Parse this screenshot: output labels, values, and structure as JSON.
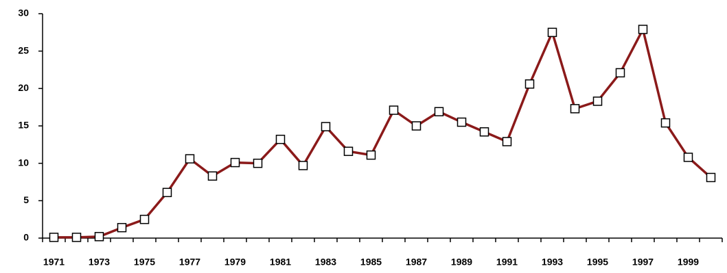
{
  "chart_data": {
    "type": "line",
    "categories": [
      "1971",
      null,
      "1973",
      null,
      "1975",
      null,
      "1977",
      null,
      "1979",
      null,
      "1981",
      null,
      "1983",
      null,
      "1985",
      null,
      "1987",
      null,
      "1989",
      null,
      "1991",
      null,
      "1993",
      null,
      "1995",
      null,
      "1997",
      null,
      "1999",
      null
    ],
    "values": [
      0.1,
      0.1,
      0.2,
      1.4,
      2.5,
      6.1,
      10.6,
      8.3,
      10.1,
      10.0,
      13.2,
      9.7,
      14.9,
      11.6,
      11.1,
      17.1,
      15.0,
      16.9,
      15.5,
      14.2,
      12.9,
      20.6,
      27.5,
      17.3,
      18.3,
      22.1,
      27.9,
      15.4,
      10.8,
      8.1
    ],
    "color": "#8b1a1a",
    "ylim": [
      0,
      30
    ],
    "yticks": [
      0,
      5,
      10,
      15,
      20,
      25,
      30
    ],
    "grid": false
  }
}
